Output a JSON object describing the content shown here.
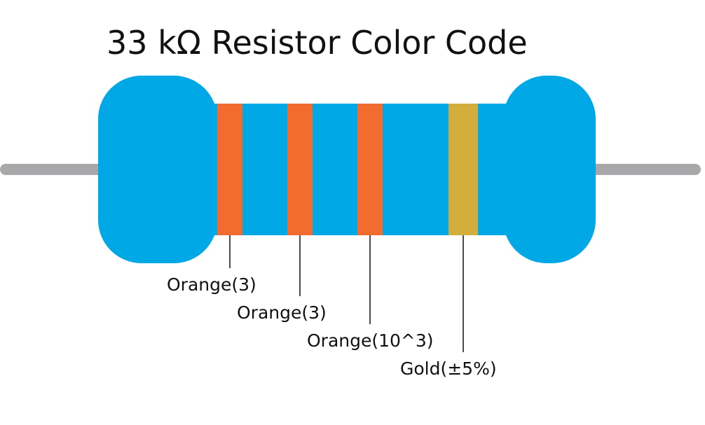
{
  "title": "33 kΩ Resistor Color Code",
  "colors": {
    "body": "#00a8e6",
    "lead": "#a8a8aa",
    "connector_line": "#111111"
  },
  "bands": [
    {
      "label": "Orange(3)",
      "color": "#f26c30"
    },
    {
      "label": "Orange(3)",
      "color": "#f26c30"
    },
    {
      "label": "Orange(10^3)",
      "color": "#f26c30"
    },
    {
      "label": "Gold(±5%)",
      "color": "#d4ae3c"
    }
  ]
}
